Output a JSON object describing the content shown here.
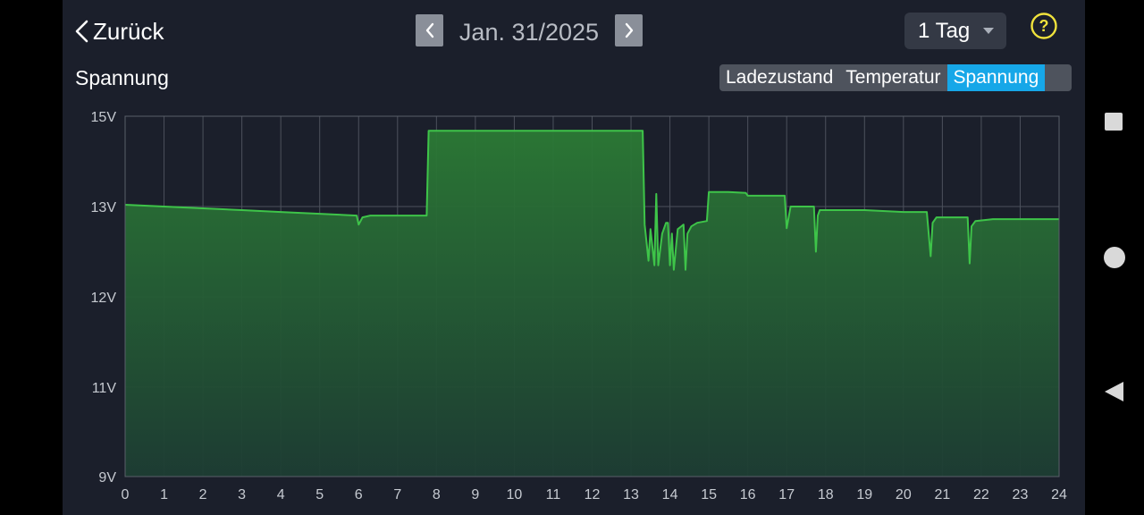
{
  "header": {
    "back_label": "Zurück",
    "date": "Jan. 31/2025",
    "range": "1 Tag"
  },
  "section": {
    "title": "Spannung"
  },
  "tabs": [
    {
      "label": "Ladezustand",
      "active": false
    },
    {
      "label": "Temperatur",
      "active": false
    },
    {
      "label": "Spannung",
      "active": true
    }
  ],
  "colors": {
    "accent": "#16a7e8",
    "line": "#3ec449",
    "help": "#f0e23c",
    "background": "#1b1f2b"
  },
  "icons": [
    "chevron-left-icon",
    "chevron-right-icon",
    "caret-down-icon",
    "help-icon"
  ],
  "chart_data": {
    "type": "area",
    "title": "",
    "xlabel": "",
    "ylabel": "",
    "x_ticks": [
      0,
      1,
      2,
      3,
      4,
      5,
      6,
      7,
      8,
      9,
      10,
      11,
      12,
      13,
      14,
      15,
      16,
      17,
      18,
      19,
      20,
      21,
      22,
      23,
      24
    ],
    "y_ticks": [
      {
        "value": 9,
        "label": "9V"
      },
      {
        "value": 11,
        "label": "11V"
      },
      {
        "value": 12,
        "label": "12V"
      },
      {
        "value": 13,
        "label": "13V"
      },
      {
        "value": 15,
        "label": "15V"
      }
    ],
    "xlim": [
      0,
      24
    ],
    "grid": true,
    "series": [
      {
        "name": "",
        "x": [
          0,
          1,
          2,
          3,
          4,
          5,
          5.95,
          6.0,
          6.1,
          6.3,
          7,
          7.75,
          7.8,
          8.5,
          10,
          12,
          13.3,
          13.35,
          13.45,
          13.5,
          13.6,
          13.65,
          13.7,
          13.8,
          13.9,
          13.95,
          14.0,
          14.05,
          14.1,
          14.2,
          14.35,
          14.4,
          14.45,
          14.55,
          14.7,
          14.95,
          15.0,
          15.5,
          15.95,
          16.0,
          16.5,
          16.95,
          17.0,
          17.1,
          17.3,
          17.7,
          17.75,
          17.8,
          17.85,
          18.1,
          19,
          20,
          20.6,
          20.7,
          20.75,
          20.85,
          21.2,
          21.65,
          21.7,
          21.75,
          21.85,
          22.3,
          23,
          24
        ],
        "values": [
          13.04,
          13.0,
          12.98,
          12.96,
          12.94,
          12.92,
          12.9,
          12.8,
          12.88,
          12.9,
          12.9,
          12.9,
          14.68,
          14.68,
          14.68,
          14.68,
          14.68,
          12.8,
          12.4,
          12.75,
          12.35,
          13.28,
          12.35,
          12.7,
          12.82,
          12.82,
          12.35,
          12.7,
          12.3,
          12.75,
          12.8,
          12.3,
          12.7,
          12.78,
          12.82,
          12.84,
          13.32,
          13.32,
          13.3,
          13.24,
          13.24,
          13.24,
          12.76,
          13.0,
          13.0,
          13.0,
          12.5,
          12.9,
          12.96,
          12.96,
          12.96,
          12.94,
          12.94,
          12.45,
          12.82,
          12.88,
          12.88,
          12.88,
          12.37,
          12.78,
          12.84,
          12.86,
          12.86,
          12.86
        ]
      }
    ]
  }
}
